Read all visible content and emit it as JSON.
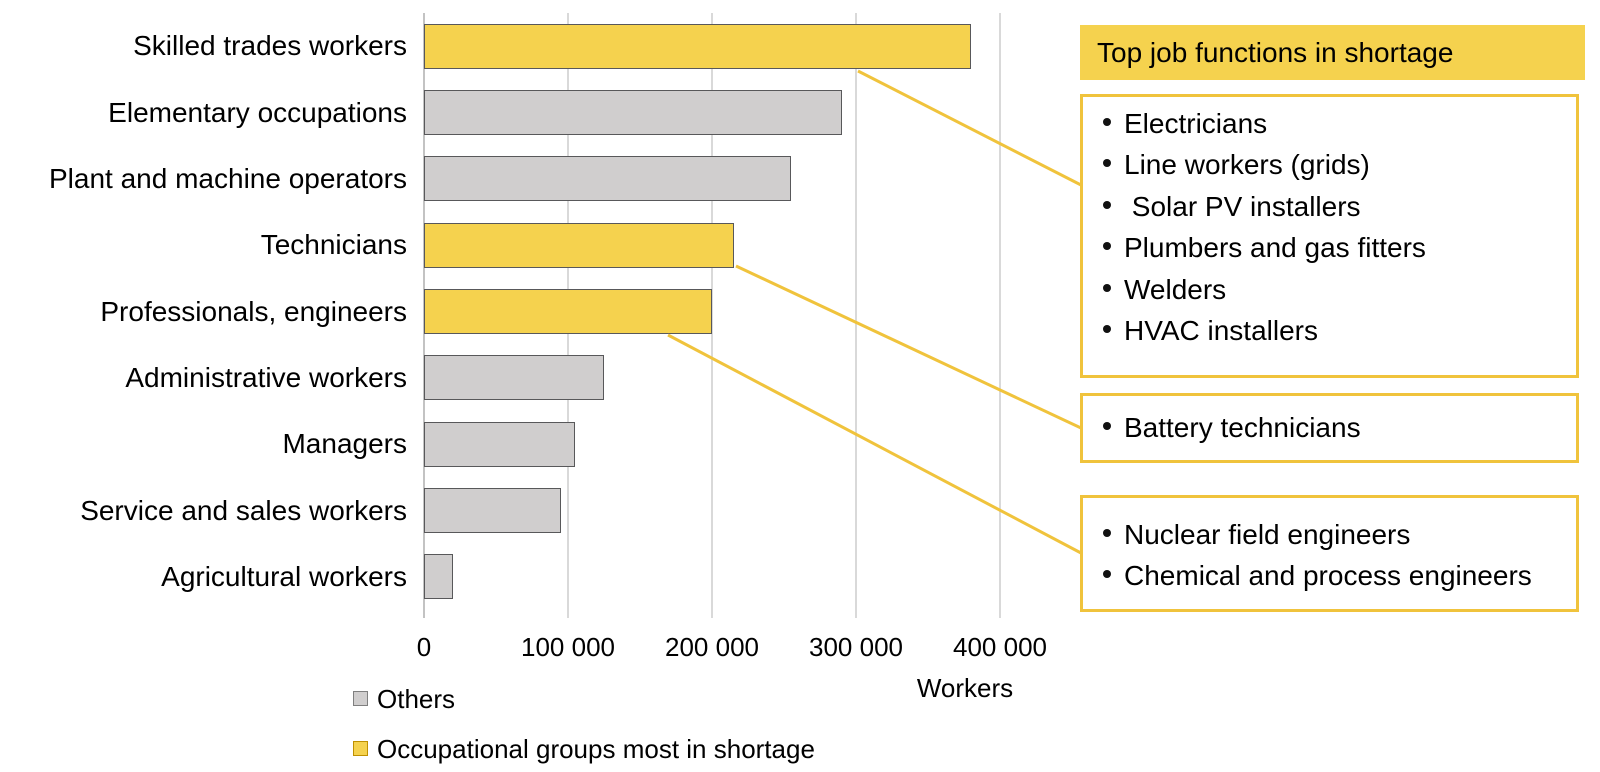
{
  "colors": {
    "bar_yellow": "#f5d24e",
    "bar_gray": "#d0cece",
    "bar_border": "#58585a",
    "callout_yellow_fill": "#f5d24e",
    "callout_border": "#f0c33c",
    "gridline": "#d9d9d9",
    "legend_gray_border": "#7f7f7f",
    "legend_yellow_border": "#bf9000"
  },
  "chart_data": {
    "type": "bar",
    "orientation": "horizontal",
    "title": "",
    "xlabel": "Workers",
    "categories": [
      "Skilled trades workers",
      "Elementary occupations",
      "Plant and machine operators",
      "Technicians",
      "Professionals, engineers",
      "Administrative workers",
      "Managers",
      "Service and sales workers",
      "Agricultural workers"
    ],
    "values": [
      380000,
      290000,
      255000,
      215000,
      200000,
      125000,
      105000,
      95000,
      20000
    ],
    "highlighted": [
      true,
      false,
      false,
      true,
      true,
      false,
      false,
      false,
      false
    ],
    "xlim": [
      0,
      450000
    ],
    "x_ticks": {
      "values": [
        0,
        100000,
        200000,
        300000,
        400000
      ],
      "labels": [
        "0",
        "100 000",
        "200 000",
        "300 000",
        "400 000"
      ]
    },
    "grid": "vertical",
    "legend_position": "bottom-left",
    "legend": [
      {
        "label": "Others",
        "swatch": "gray"
      },
      {
        "label": "Occupational groups most in shortage",
        "swatch": "yellow"
      }
    ]
  },
  "callouts": {
    "header": "Top job functions in shortage",
    "boxes": [
      {
        "linked_bar": "Skilled trades workers",
        "items": [
          "Electricians",
          "Line workers (grids)",
          " Solar PV installers",
          "Plumbers and gas fitters",
          "Welders",
          "HVAC installers"
        ]
      },
      {
        "linked_bar": "Technicians",
        "items": [
          "Battery technicians"
        ]
      },
      {
        "linked_bar": "Professionals, engineers",
        "items": [
          "Nuclear field engineers",
          "Chemical and process engineers"
        ]
      }
    ]
  }
}
